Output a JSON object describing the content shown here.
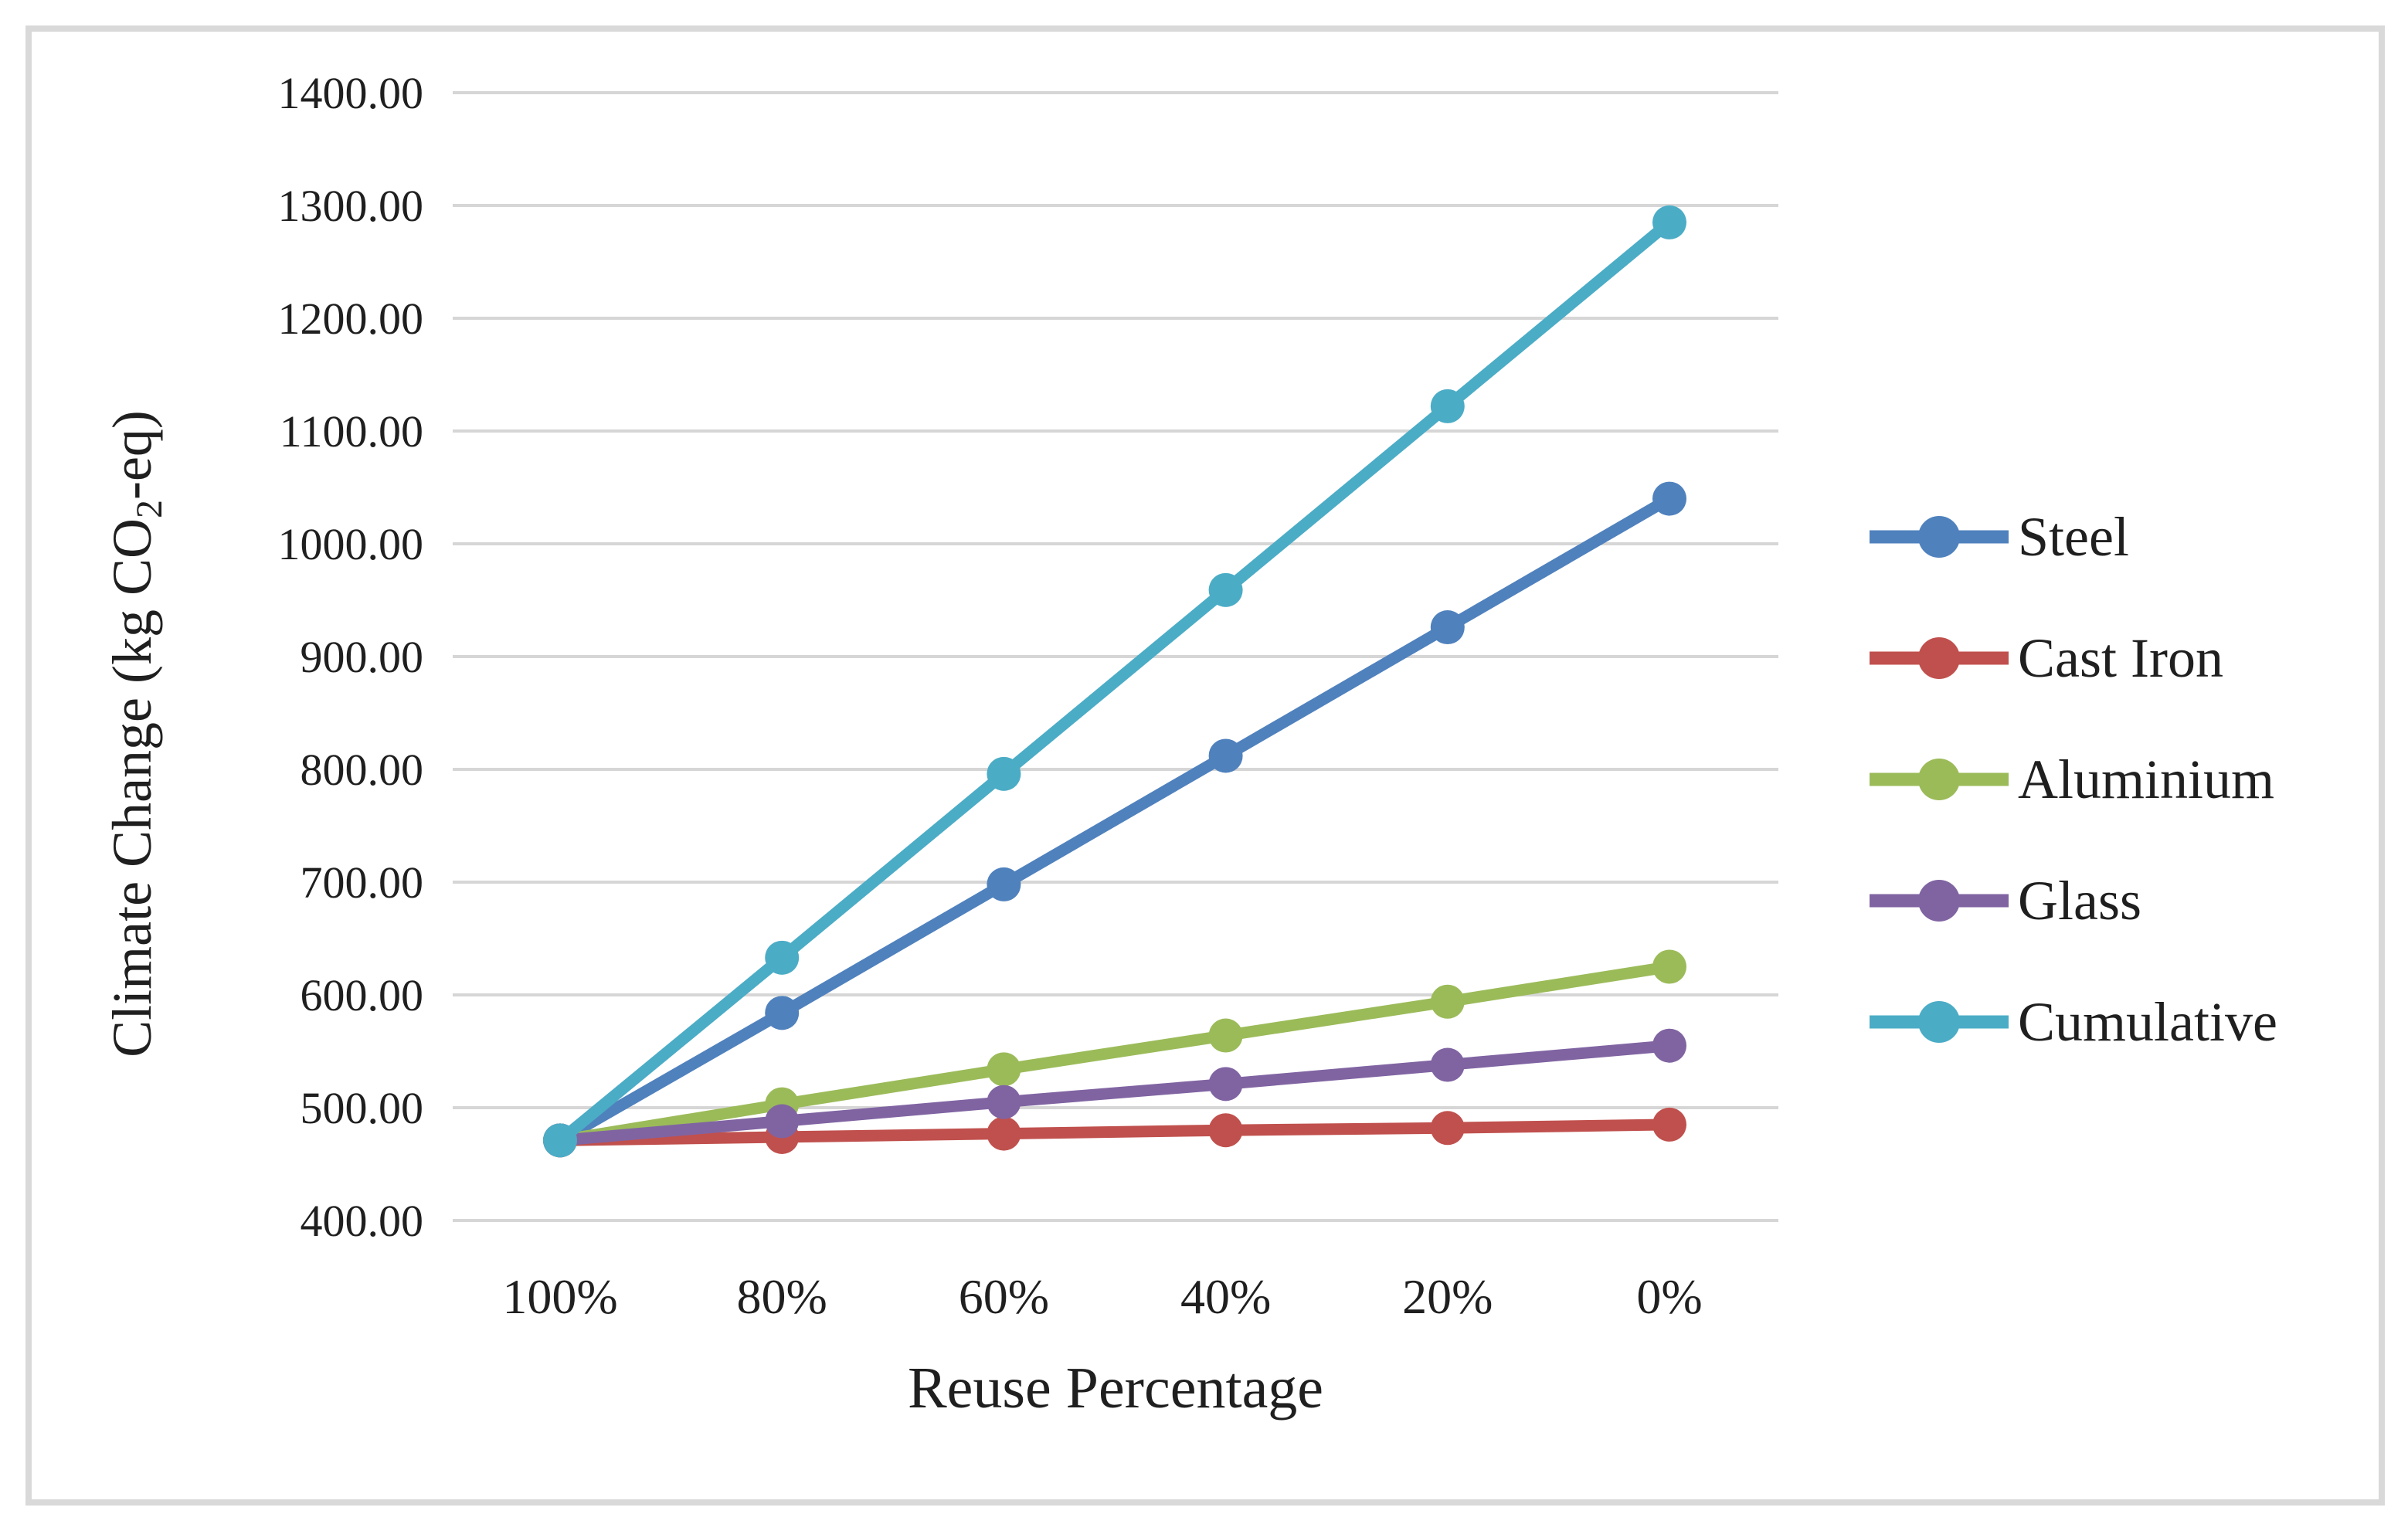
{
  "figure": {
    "background_color": "#ffffff",
    "border_color": "#d9d9d9",
    "gridline_color": "#d6d6d6",
    "text_color": "#1f1f1f"
  },
  "chart_data": {
    "type": "line",
    "title": "",
    "xlabel": "Reuse Percentage",
    "ylabel": "Climate Change (kg CO2-eq)",
    "ylabel_parts": {
      "pre": "Climate Change (kg CO",
      "sub": "2",
      "post": "-eq)"
    },
    "categories": [
      "100%",
      "80%",
      "60%",
      "40%",
      "20%",
      "0%"
    ],
    "y_tick_labels": [
      "400.00",
      "500.00",
      "600.00",
      "700.00",
      "800.00",
      "900.00",
      "1000.00",
      "1100.00",
      "1200.00",
      "1300.00",
      "1400.00"
    ],
    "ylim": [
      400,
      1400
    ],
    "y_tick_step": 100,
    "grid": true,
    "legend_position": "right",
    "marker": "circle",
    "series": [
      {
        "name": "Steel",
        "color": "#4F81BD",
        "values": [
          471,
          584,
          698,
          812,
          926,
          1040
        ]
      },
      {
        "name": "Cast Iron",
        "color": "#C0504D",
        "values": [
          471,
          474,
          477,
          480,
          482,
          485
        ]
      },
      {
        "name": "Aluminium",
        "color": "#9BBB59",
        "values": [
          471,
          503,
          534,
          564,
          594,
          625
        ]
      },
      {
        "name": "Glass",
        "color": "#8064A2",
        "values": [
          471,
          488,
          505,
          521,
          538,
          555
        ]
      },
      {
        "name": "Cumulative",
        "color": "#4BACC6",
        "values": [
          471,
          633,
          796,
          959,
          1122,
          1285
        ]
      }
    ],
    "legend_order": [
      "Steel",
      "Cast Iron",
      "Aluminium",
      "Glass",
      "Cumulative"
    ]
  }
}
